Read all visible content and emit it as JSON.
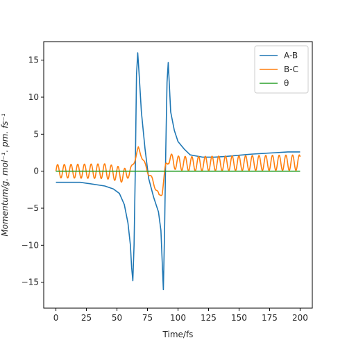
{
  "chart_data": {
    "type": "line",
    "xlabel": "Time/fs",
    "ylabel": "Momentum/g. mol⁻¹. pm. fs⁻¹",
    "xlim": [
      -10,
      210
    ],
    "ylim": [
      -18.5,
      17.5
    ],
    "xticks": [
      0,
      25,
      50,
      75,
      100,
      125,
      150,
      175,
      200
    ],
    "yticks": [
      -15,
      -10,
      -5,
      0,
      5,
      10,
      15
    ],
    "legend": {
      "position": "upper right"
    },
    "grid": false,
    "series": [
      {
        "name": "A-B",
        "color": "#1f77b4",
        "x": [
          0,
          20,
          40,
          47,
          52,
          56,
          59,
          61,
          62,
          63,
          64,
          65,
          66,
          67,
          68,
          70,
          73,
          76,
          80,
          84,
          86,
          87,
          88,
          89,
          90,
          91,
          92,
          94,
          97,
          100,
          105,
          110,
          120,
          130,
          140,
          150,
          160,
          170,
          180,
          190,
          200
        ],
        "y": [
          -1.5,
          -1.5,
          -2.0,
          -2.4,
          -3.0,
          -4.5,
          -7.0,
          -10.0,
          -13.0,
          -14.8,
          -10.0,
          0.0,
          13.0,
          16.0,
          13.5,
          8.0,
          3.0,
          -1.0,
          -3.5,
          -5.5,
          -8.0,
          -12.0,
          -16.0,
          -8.0,
          3.0,
          12.0,
          14.7,
          8.0,
          5.5,
          4.0,
          3.0,
          2.2,
          1.9,
          1.9,
          2.0,
          2.15,
          2.3,
          2.4,
          2.5,
          2.6,
          2.6
        ]
      },
      {
        "name": "B-C",
        "color": "#ff7f0e",
        "oscillation": {
          "base_x": [
            0,
            40,
            50,
            56,
            60,
            63,
            66,
            67.5,
            70,
            73,
            76,
            79,
            82,
            84.5,
            87,
            90,
            92,
            95,
            100,
            110,
            130,
            160,
            200
          ],
          "base_y": [
            0,
            0,
            -0.3,
            -0.6,
            -0.2,
            0.8,
            2.3,
            3.0,
            2.2,
            0.8,
            -0.3,
            -1.2,
            -2.4,
            -3.4,
            -2.8,
            0.5,
            2.0,
            1.3,
            1.1,
            1.0,
            1.05,
            1.1,
            1.15
          ],
          "amp_x": [
            0,
            40,
            56,
            62,
            86,
            92,
            200
          ],
          "amp_y": [
            0.9,
            1.0,
            1.0,
            0.3,
            0.3,
            0.95,
            1.05
          ],
          "period": 5.5,
          "x_end": 200
        }
      },
      {
        "name": "θ",
        "color": "#2ca02c",
        "x": [
          0,
          200
        ],
        "y": [
          0,
          0
        ]
      }
    ]
  }
}
